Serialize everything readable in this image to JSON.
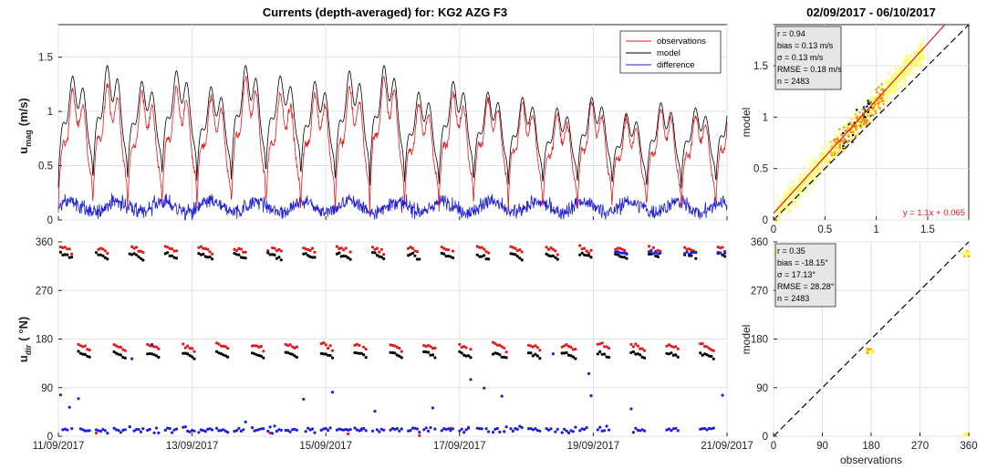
{
  "figure": {
    "title_main": "Currents (depth-averaged) for: KG2 AZG F3",
    "title_period": "02/09/2017 - 06/10/2017"
  },
  "colors": {
    "observations": "#e41a1c",
    "model": "#000000",
    "difference": "#1f1fd6",
    "fit": "#e31a1c",
    "identity": "#000000",
    "density_low": "#ffff66",
    "density_mid": "#ff8c00",
    "density_high": "#000000"
  },
  "chart_data": [
    {
      "id": "umag",
      "type": "line",
      "ylabel": "u",
      "ylabel_sub": "mag",
      "ylabel_unit": "(m/s)",
      "x_tick_labels": [
        "11/09/2017",
        "13/09/2017",
        "15/09/2017",
        "17/09/2017",
        "19/09/2017",
        "21/09/2017"
      ],
      "xlim": [
        "11/09/2017",
        "21/09/2017"
      ],
      "ylim": [
        0,
        1.8
      ],
      "yticks": [
        0,
        0.5,
        1,
        1.5
      ],
      "ytick_labels": [
        "0",
        "0.5",
        "1",
        "1.5"
      ],
      "grid": true,
      "legend_position": "top-right",
      "legend": [
        "observations",
        "model",
        "difference"
      ],
      "tidal_period_days": 0.5175,
      "series": [
        {
          "name": "observations",
          "peak_values": [
            1.22,
            1.28,
            1.2,
            1.25,
            1.15,
            1.35,
            1.2,
            1.2,
            1.25,
            1.35,
            1.1,
            1.2,
            1.15,
            1.1,
            1.0,
            1.1,
            0.95,
            1.05,
            1.0,
            1.1,
            1.05,
            1.1,
            1.05,
            1.15,
            1.2,
            1.1,
            1.15,
            1.05,
            1.2,
            1.15,
            1.3,
            1.25,
            1.3,
            1.2,
            1.35,
            1.25,
            1.35,
            1.3,
            1.15
          ],
          "trough_values": [
            0.05,
            0.05,
            0.05,
            0.08,
            0.05,
            0.05,
            0.05,
            0.05,
            0.03,
            0.05,
            0.05,
            0.05,
            0.08,
            0.05,
            0.05,
            0.05,
            0.06,
            0.05,
            0.05,
            0.05,
            0.05,
            0.05,
            0.05,
            0.05,
            0.05,
            0.05,
            0.05,
            0.05,
            0.05,
            0.05,
            0.05,
            0.05,
            0.05,
            0.05,
            0.05,
            0.05,
            0.05,
            0.05,
            0.05
          ]
        },
        {
          "name": "model",
          "peak_values": [
            1.35,
            1.45,
            1.3,
            1.4,
            1.25,
            1.45,
            1.35,
            1.3,
            1.4,
            1.45,
            1.2,
            1.3,
            1.2,
            1.15,
            1.05,
            1.15,
            1.0,
            1.1,
            1.05,
            1.15,
            1.1,
            1.15,
            1.1,
            1.2,
            1.25,
            1.15,
            1.2,
            1.1,
            1.25,
            1.3,
            1.4,
            1.3,
            1.45,
            1.25,
            1.45,
            1.35,
            1.45,
            1.4,
            1.4
          ],
          "trough_values": [
            0.3,
            0.28,
            0.35,
            0.35,
            0.3,
            0.32,
            0.4,
            0.3,
            0.28,
            0.3,
            0.25,
            0.3,
            0.28,
            0.28,
            0.28,
            0.3,
            0.25,
            0.25,
            0.3,
            0.28,
            0.28,
            0.26,
            0.25,
            0.25,
            0.28,
            0.25,
            0.3,
            0.28,
            0.3,
            0.25,
            0.3,
            0.25,
            0.28,
            0.25,
            0.3,
            0.28,
            0.3,
            0.28,
            0.25
          ]
        },
        {
          "name": "difference",
          "mean_value": 0.12,
          "range": [
            0,
            0.45
          ]
        }
      ]
    },
    {
      "id": "udir",
      "type": "scatter",
      "ylabel": "u",
      "ylabel_sub": "dir",
      "ylabel_unit": "( °N)",
      "x_tick_labels": [
        "11/09/2017",
        "13/09/2017",
        "15/09/2017",
        "17/09/2017",
        "19/09/2017",
        "21/09/2017"
      ],
      "xlim": [
        "11/09/2017",
        "21/09/2017"
      ],
      "ylim": [
        0,
        360
      ],
      "yticks": [
        0,
        90,
        180,
        270,
        360
      ],
      "ytick_labels": [
        "0",
        "90",
        "180",
        "270",
        "360"
      ],
      "grid": true,
      "series": [
        {
          "name": "observations",
          "flood_direction": 350,
          "ebb_direction": 170
        },
        {
          "name": "model",
          "flood_direction": 338,
          "ebb_direction": 155
        },
        {
          "name": "difference",
          "typical_value": 12,
          "flood_value": 340
        }
      ]
    },
    {
      "id": "umag_scatter",
      "type": "heatmap",
      "xlim": [
        0,
        1.9
      ],
      "ylim": [
        0,
        1.9
      ],
      "xticks": [
        0,
        0.5,
        1,
        1.5
      ],
      "xtick_labels": [
        "0",
        "0.5",
        "1",
        "1.5"
      ],
      "yticks": [
        0,
        0.5,
        1,
        1.5
      ],
      "ytick_labels": [
        "0",
        "0.5",
        "1",
        "1.5"
      ],
      "ylabel": "model",
      "stats": [
        "r = 0.94",
        "bias = 0.13 m/s",
        "σ = 0.13 m/s",
        "RMSE = 0.18 m/s",
        "n = 2483"
      ],
      "fit": {
        "slope": 1.1,
        "intercept": 0.065,
        "label": "y = 1.1x + 0.065"
      },
      "identity_line": true
    },
    {
      "id": "udir_scatter",
      "type": "heatmap",
      "xlim": [
        0,
        360
      ],
      "ylim": [
        0,
        360
      ],
      "xticks": [
        0,
        90,
        180,
        270,
        360
      ],
      "xtick_labels": [
        "0",
        "90",
        "180",
        "270",
        "360"
      ],
      "yticks": [
        0,
        90,
        180,
        270,
        360
      ],
      "ytick_labels": [
        "0",
        "90",
        "180",
        "270",
        "360"
      ],
      "xlabel": "observations",
      "ylabel": "model",
      "stats": [
        "r = 0.35",
        "bias = -18.15°",
        "σ = 17.13°",
        "RMSE = 28.28°",
        "n = 2483"
      ],
      "clusters": [
        {
          "x": 175,
          "y": 160,
          "weight": "high"
        },
        {
          "x": 355,
          "y": 340,
          "weight": "high"
        },
        {
          "x": 5,
          "y": 340,
          "weight": "low"
        },
        {
          "x": 355,
          "y": 5,
          "weight": "low"
        }
      ],
      "identity_line": true
    }
  ]
}
